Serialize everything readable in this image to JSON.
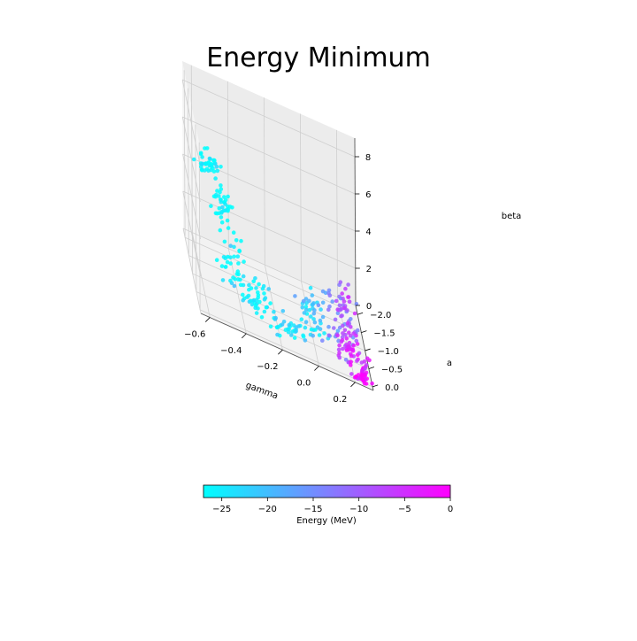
{
  "chart_data": {
    "type": "scatter",
    "projection": "3d",
    "title": "Energy Minimum",
    "axes": {
      "x": {
        "label": "gamma",
        "range": [
          -0.65,
          0.3
        ],
        "ticks": [
          -0.6,
          -0.4,
          -0.2,
          0.0,
          0.2
        ],
        "tick_labels": [
          "−0.6",
          "−0.4",
          "−0.2",
          "0.0",
          "0.2"
        ]
      },
      "y": {
        "label": "a",
        "range": [
          -2.25,
          0.1
        ],
        "ticks": [
          0.0,
          -0.5,
          -1.0,
          -1.5,
          -2.0
        ],
        "tick_labels": [
          "0.0",
          "−0.5",
          "−1.0",
          "−1.5",
          "−2.0"
        ]
      },
      "z": {
        "label": "beta",
        "range": [
          0,
          9
        ],
        "ticks": [
          0,
          2,
          4,
          6,
          8
        ],
        "tick_labels": [
          "0",
          "2",
          "4",
          "6",
          "8"
        ]
      }
    },
    "grid": true,
    "colorbar": {
      "label": "Energy (MeV)",
      "range": [
        -27,
        0
      ],
      "ticks": [
        -25,
        -20,
        -15,
        -10,
        -5,
        0
      ],
      "tick_labels": [
        "−25",
        "−20",
        "−15",
        "−10",
        "−5",
        "0"
      ],
      "colormap": "cool",
      "color_low": "#00ffff",
      "color_high": "#ff00ff",
      "orientation": "horizontal",
      "placement": "bottom"
    },
    "clusters": [
      {
        "gamma": -0.6,
        "a": -0.05,
        "beta": 8.0,
        "energy": -27,
        "spread": [
          0.03,
          0.05,
          0.35
        ]
      },
      {
        "gamma": -0.52,
        "a": -0.1,
        "beta": 6.0,
        "energy": -27,
        "spread": [
          0.03,
          0.06,
          0.5
        ]
      },
      {
        "gamma": -0.45,
        "a": -0.15,
        "beta": 3.2,
        "energy": -27,
        "spread": [
          0.04,
          0.08,
          0.8
        ]
      },
      {
        "gamma": -0.33,
        "a": -0.25,
        "beta": 1.5,
        "energy": -26,
        "spread": [
          0.04,
          0.08,
          0.5
        ]
      },
      {
        "gamma": -0.15,
        "a": -0.35,
        "beta": 0.6,
        "energy": -25,
        "spread": [
          0.05,
          0.1,
          0.35
        ]
      },
      {
        "gamma": -0.02,
        "a": -0.2,
        "beta": 2.0,
        "energy": -22,
        "spread": [
          0.04,
          0.1,
          0.6
        ]
      },
      {
        "gamma": 0.12,
        "a": -0.3,
        "beta": 2.5,
        "energy": -14,
        "spread": [
          0.05,
          0.12,
          0.8
        ]
      },
      {
        "gamma": 0.16,
        "a": -0.1,
        "beta": 3.2,
        "energy": -8,
        "spread": [
          0.03,
          0.1,
          0.9
        ]
      },
      {
        "gamma": 0.2,
        "a": -0.55,
        "beta": 0.5,
        "energy": -4,
        "spread": [
          0.05,
          0.12,
          0.3
        ]
      },
      {
        "gamma": 0.24,
        "a": -0.05,
        "beta": 0.3,
        "energy": -1,
        "spread": [
          0.03,
          0.06,
          0.3
        ]
      }
    ]
  }
}
